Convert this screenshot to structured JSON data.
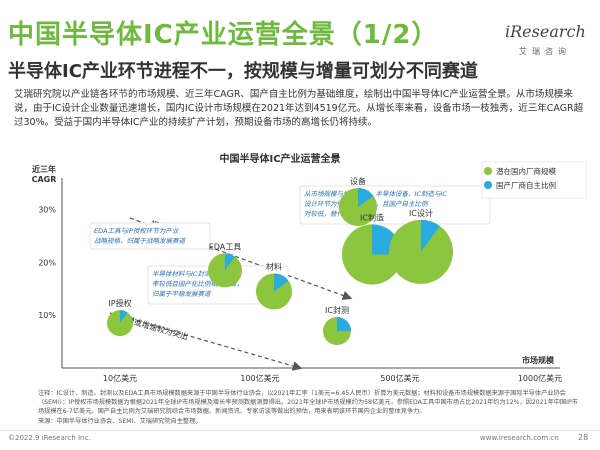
{
  "header": {
    "title": "中国半导体IC产业运营全景（1/2）",
    "subtitle": "半导体IC产业环节进程不一，按规模与增量可划分不同赛道",
    "logo_text": "iResearch",
    "logo_cn": "艾瑞咨询"
  },
  "intro": "艾瑞研究院以产业链各环节的市场规模、近三年CAGR、国产自主比例为基础维度，绘制出中国半导体IC产业运营全景。从市场规模来说，由于IC设计企业数量迅速增长，国内IC设计市场规模在2021年达到4519亿元。从增长率来看，设备市场一枝独秀，近三年CAGR超过30%。受益于国内半导体IC产业的持续扩产计划，预期设备市场的高增长仍将持续。",
  "chart_data": {
    "type": "bubble-pie",
    "title": "中国半导体IC产业运营全景",
    "xlabel": "市场规模",
    "ylabel": "近三年CAGR",
    "x_ticks": [
      "10亿美元",
      "100亿美元",
      "500亿美元",
      "1000亿美元"
    ],
    "y_ticks": [
      "10%",
      "20%",
      "30%"
    ],
    "legend": [
      "潜在国内厂商规模",
      "国产厂商自主比例"
    ],
    "legend_placement": "top-right",
    "colors": {
      "potential": "#8cc63f",
      "domestic": "#29abe2"
    },
    "bubbles": [
      {
        "label": "IP授权",
        "x_tick_position": 0.2,
        "y_percent": 8.5,
        "domestic_share": 0.1
      },
      {
        "label": "EDA工具",
        "x_tick_position": 0.95,
        "y_percent": 18.5,
        "domestic_share": 0.1
      },
      {
        "label": "材料",
        "x_tick_position": 1.3,
        "y_percent": 14.5,
        "domestic_share": 0.15
      },
      {
        "label": "设备",
        "x_tick_position": 1.9,
        "y_percent": 30.5,
        "domestic_share": 0.15
      },
      {
        "label": "IC制造",
        "x_tick_position": 2.0,
        "y_percent": 21.5,
        "domestic_share": 0.25
      },
      {
        "label": "IC设计",
        "x_tick_position": 2.35,
        "y_percent": 22.0,
        "domestic_share": 0.1
      },
      {
        "label": "IC封测",
        "x_tick_position": 1.75,
        "y_percent": 7.0,
        "domestic_share": 0.25
      }
    ],
    "annotations": [
      {
        "id": "top-right",
        "lines": [
          "从市场规模与增速来看，半导体设备、IC制造与IC",
          "设计环节为快速发展赛道，且国产自主比例",
          "对较低，替代空间广阔"
        ]
      },
      {
        "id": "middle",
        "lines": [
          "半导体材料与IC封测环节增长",
          "率较低且国产化比例相对较高，",
          "归属于平稳发展赛道"
        ]
      },
      {
        "id": "left",
        "lines": [
          "EDA工具与IP授权环节为产业",
          "战略规格，归属于战略发展赛道"
        ]
      }
    ],
    "arrow_labels": [
      "规模与增速兼具",
      "规模或增速较为突出"
    ]
  },
  "footnote": "注释：IC设计、制造、封测以及EDA工具市场规模数据来源于中国半导体行业协会，以2021年汇率（1美元=6.45人民币）折算为美元数据；材料和设备市场规模数据来源于国际半导体产业协会（SEMI）；IP授权市场规模数据为根据2021年全球IP市场规模及增长率预测数据测算得出。2021年全球IP市场规模约为58亿美元，参照EDA工具中国市场占比2021年约为12%，因2021年中国IP市场规模在6-7亿美元。国产自主比例为艾瑞研究院综合市场数据、新闻资讯、专家访谈等做出的预估，用来表明该环节国内企业的整体竞争力。",
  "source": "来源：中国半导体行业协会、SEMI、艾瑞研究院自主整理。",
  "footer": {
    "copyright": "©2022.9 iResearch Inc.",
    "website": "www.iresearch.com.cn",
    "page": "28"
  }
}
